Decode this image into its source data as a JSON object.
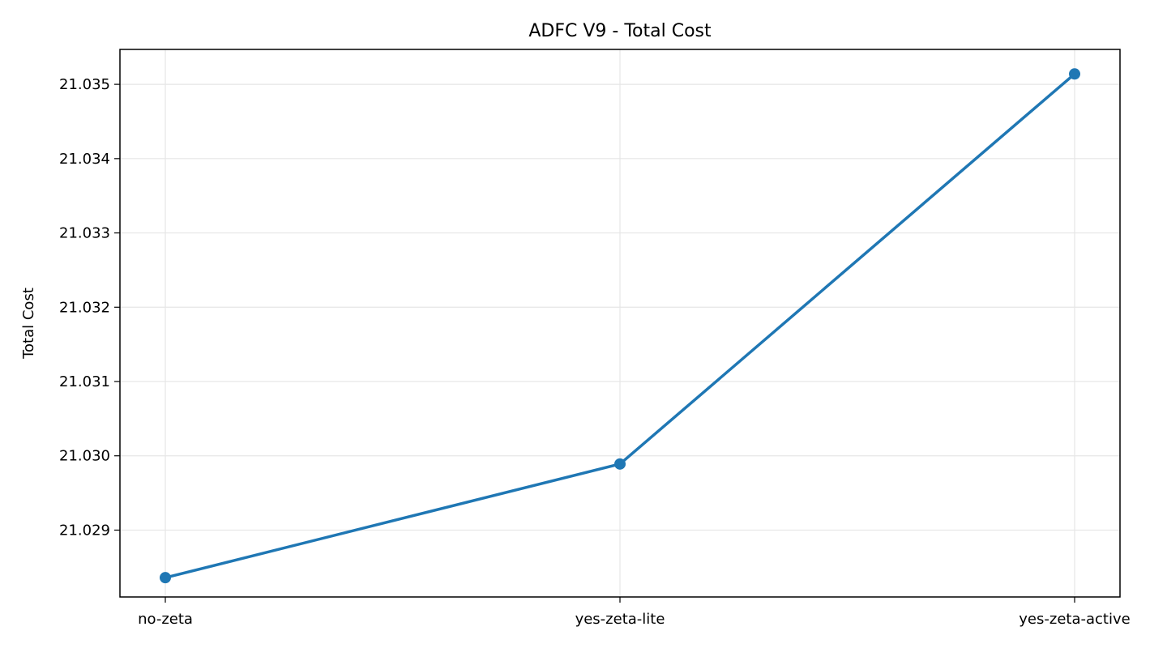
{
  "chart_data": {
    "type": "line",
    "title": "ADFC V9 - Total Cost",
    "xlabel": "",
    "ylabel": "Total Cost",
    "categories": [
      "no-zeta",
      "yes-zeta-lite",
      "yes-zeta-active"
    ],
    "series": [
      {
        "values": [
          21.02836,
          21.02989,
          21.03514
        ]
      }
    ],
    "ylim": [
      21.0281,
      21.03547
    ],
    "yticks": [
      "21.029",
      "21.030",
      "21.031",
      "21.032",
      "21.033",
      "21.034",
      "21.035"
    ],
    "grid": true,
    "legend": "none",
    "colors": {
      "line": "#1f77b4",
      "grid": "#e6e6e6",
      "axis": "#000000"
    }
  }
}
